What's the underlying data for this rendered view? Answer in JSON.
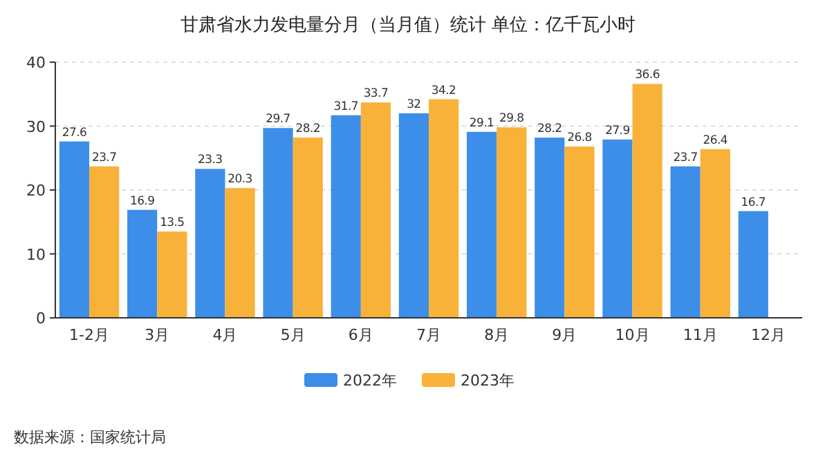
{
  "chart_data": {
    "type": "bar",
    "title": "甘肃省水力发电量分月（当月值）统计  单位：亿千瓦小时",
    "categories": [
      "1-2月",
      "3月",
      "4月",
      "5月",
      "6月",
      "7月",
      "8月",
      "9月",
      "10月",
      "11月",
      "12月"
    ],
    "series": [
      {
        "name": "2022年",
        "color": "#3d8ee8",
        "values": [
          27.6,
          16.9,
          23.3,
          29.7,
          31.7,
          32,
          29.1,
          28.2,
          27.9,
          23.7,
          16.7
        ]
      },
      {
        "name": "2023年",
        "color": "#f8b23a",
        "values": [
          23.7,
          13.5,
          20.3,
          28.2,
          33.7,
          34.2,
          29.8,
          26.8,
          36.6,
          26.4,
          null
        ]
      }
    ],
    "ylim": [
      0,
      40
    ],
    "yticks": [
      0,
      10,
      20,
      30,
      40
    ],
    "grid": "y",
    "legend": "bottom",
    "data_labels": true,
    "annotations": [
      "数据来源：国家统计局"
    ]
  }
}
